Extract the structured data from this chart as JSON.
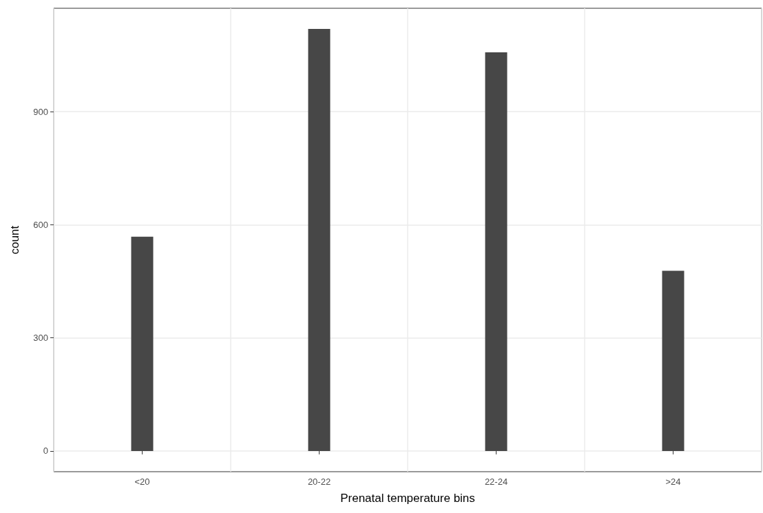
{
  "chart_data": {
    "type": "bar",
    "xlabel": "Prenatal temperature bins",
    "ylabel": "count",
    "categories": [
      "<20",
      "20-22",
      "22-24",
      ">24"
    ],
    "values": [
      568,
      1119,
      1057,
      478
    ],
    "color": "#474747",
    "ylim": [
      -55,
      1174
    ],
    "yticks": [
      0,
      300,
      600,
      900
    ],
    "grid": true
  }
}
